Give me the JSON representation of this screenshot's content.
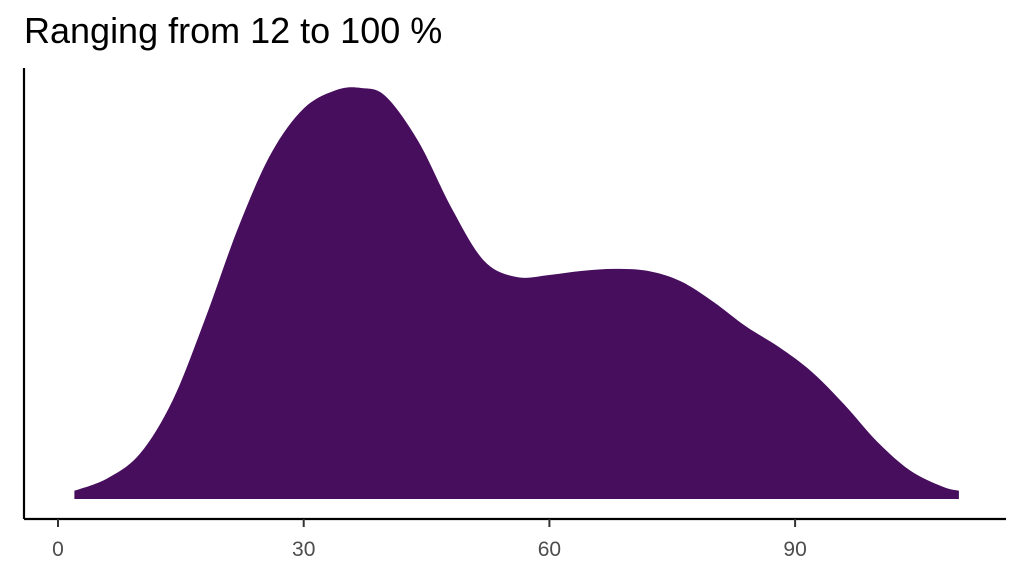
{
  "chart_data": {
    "type": "area",
    "title": "Ranging from 12 to 100 %",
    "xlabel": "",
    "ylabel": "",
    "xlim": [
      -3,
      115
    ],
    "ylim": [
      0,
      1
    ],
    "x_ticks": [
      0,
      30,
      60,
      90
    ],
    "x_tick_labels": [
      "0",
      "30",
      "60",
      "90"
    ],
    "y_ticks": [],
    "grid": false,
    "legend": "none",
    "fill_color": "#460E5D",
    "series": [
      {
        "x": [
          2,
          6,
          10,
          14,
          18,
          22,
          26,
          30,
          34,
          37,
          40,
          44,
          48,
          52,
          56,
          60,
          64,
          68,
          72,
          76,
          80,
          84,
          88,
          92,
          96,
          100,
          104,
          108,
          110
        ],
        "values": [
          0.02,
          0.05,
          0.11,
          0.24,
          0.44,
          0.66,
          0.84,
          0.95,
          0.995,
          1.0,
          0.98,
          0.87,
          0.71,
          0.58,
          0.54,
          0.545,
          0.555,
          0.56,
          0.555,
          0.53,
          0.48,
          0.42,
          0.37,
          0.31,
          0.23,
          0.14,
          0.07,
          0.03,
          0.02
        ]
      }
    ]
  }
}
